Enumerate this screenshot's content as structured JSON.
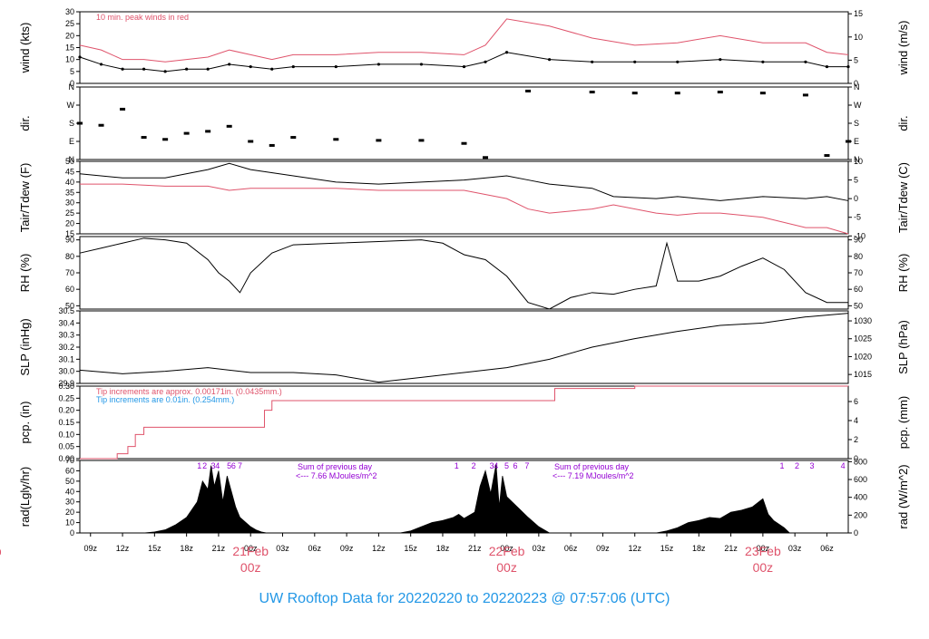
{
  "title": "UW Rooftop Data for 20220220  to  20220223 @ 07:57:06  (UTC)",
  "colors": {
    "red": "#df536b",
    "blue": "#2297e6",
    "purple": "#9400d3",
    "black": "#000000"
  },
  "panels": [
    {
      "id": "wind",
      "ylabel_left": "wind (kts)",
      "ylabel_right": "wind (m/s)",
      "left_ticks": [
        "0",
        "5",
        "10",
        "15",
        "20",
        "25",
        "30"
      ],
      "right_ticks": [
        "0",
        "5",
        "10",
        "15"
      ]
    },
    {
      "id": "dir",
      "ylabel_left": "dir.",
      "ylabel_right": "dir.",
      "left_ticks": [
        "N",
        "E",
        "S",
        "W",
        "N"
      ],
      "right_ticks": [
        "N",
        "E",
        "S",
        "W",
        "N"
      ]
    },
    {
      "id": "temp",
      "ylabel_left": "Tair/Tdew (F)",
      "ylabel_right": "Tair/Tdew (C)",
      "left_ticks": [
        "15",
        "20",
        "25",
        "30",
        "35",
        "40",
        "45",
        "50"
      ],
      "right_ticks": [
        "-10",
        "-5",
        "0",
        "5",
        "10"
      ]
    },
    {
      "id": "rh",
      "ylabel_left": "RH (%)",
      "ylabel_right": "RH (%)",
      "left_ticks": [
        "50",
        "60",
        "70",
        "80",
        "90"
      ],
      "right_ticks": [
        "50",
        "60",
        "70",
        "80",
        "90"
      ]
    },
    {
      "id": "slp",
      "ylabel_left": "SLP (inHg)",
      "ylabel_right": "SLP (hPa)",
      "left_ticks": [
        "29.9",
        "30.0",
        "30.1",
        "30.2",
        "30.3",
        "30.4",
        "30.5"
      ],
      "right_ticks": [
        "1015",
        "1020",
        "1025",
        "1030"
      ]
    },
    {
      "id": "pcp",
      "ylabel_left": "pcp. (in)",
      "ylabel_right": "pcp. (mm)",
      "left_ticks": [
        "0.00",
        "0.05",
        "0.10",
        "0.15",
        "0.20",
        "0.25",
        "0.30"
      ],
      "right_ticks": [
        "0",
        "2",
        "4",
        "6"
      ]
    },
    {
      "id": "rad",
      "ylabel_left": "rad(Lgly/hr)",
      "ylabel_right": "rad (W/m^2)",
      "left_ticks": [
        "0",
        "10",
        "20",
        "30",
        "40",
        "50",
        "60",
        "70"
      ],
      "right_ticks": [
        "0",
        "200",
        "400",
        "600",
        "800"
      ]
    }
  ],
  "annotations": {
    "wind_note": "10 min. peak winds in red",
    "tip_note_1": "Tip increments are approx. 0.00171in. (0.0435mm.)",
    "tip_note_2": "Tip increments are 0.01in. (0.254mm.)",
    "sum1_line1": "Sum of previous day",
    "sum1_line2": "<--- 7.66 MJoules/m^2",
    "sum2_line1": "Sum of previous day",
    "sum2_line2": "<--- 7.19 MJoules/m^2",
    "hour_markers": [
      {
        "label": "1",
        "h": 19.2
      },
      {
        "label": "2",
        "h": 19.7
      },
      {
        "label": "3",
        "h": 20.5
      },
      {
        "label": "4",
        "h": 20.9
      },
      {
        "label": "5",
        "h": 22.0
      },
      {
        "label": "6",
        "h": 22.4
      },
      {
        "label": "7",
        "h": 23.0
      },
      {
        "label": "1",
        "h": 43.3
      },
      {
        "label": "2",
        "h": 44.9
      },
      {
        "label": "3",
        "h": 46.6
      },
      {
        "label": "4",
        "h": 47.0
      },
      {
        "label": "5",
        "h": 48.0
      },
      {
        "label": "6",
        "h": 48.8
      },
      {
        "label": "7",
        "h": 49.9
      },
      {
        "label": "1",
        "h": 73.8
      },
      {
        "label": "2",
        "h": 75.2
      },
      {
        "label": "3",
        "h": 76.6
      },
      {
        "label": "4",
        "h": 79.5
      }
    ]
  },
  "x_ticks": [
    "09z",
    "12z",
    "15z",
    "18z",
    "21z",
    "00z",
    "03z",
    "06z",
    "09z",
    "12z",
    "15z",
    "18z",
    "21z",
    "00z",
    "03z",
    "06z",
    "09z",
    "12z",
    "15z",
    "18z",
    "21z",
    "00z",
    "03z",
    "06z"
  ],
  "day_labels": [
    {
      "date": "eb",
      "hour": "z"
    },
    {
      "date": "21Feb",
      "hour": "00z"
    },
    {
      "date": "22Feb",
      "hour": "00z"
    },
    {
      "date": "23Feb",
      "hour": "00z"
    }
  ],
  "chart_data": {
    "type": "line",
    "x_unit": "hours since 2022-02-20 00z",
    "x_range": [
      8,
      80
    ],
    "wind_kts": {
      "x": [
        8,
        10,
        12,
        14,
        16,
        18,
        20,
        22,
        24,
        26,
        28,
        32,
        36,
        40,
        44,
        46,
        48,
        52,
        56,
        60,
        64,
        68,
        72,
        76,
        78,
        80
      ],
      "sustained": [
        11,
        8,
        6,
        6,
        5,
        6,
        6,
        8,
        7,
        6,
        7,
        7,
        8,
        8,
        7,
        9,
        13,
        10,
        9,
        9,
        9,
        10,
        9,
        9,
        7,
        7
      ],
      "peak": [
        16,
        14,
        10,
        10,
        9,
        10,
        11,
        14,
        12,
        10,
        12,
        12,
        13,
        13,
        12,
        16,
        27,
        24,
        19,
        16,
        17,
        20,
        17,
        17,
        13,
        12
      ],
      "ylim": [
        0,
        30
      ]
    },
    "wind_dir": {
      "x": [
        8,
        10,
        12,
        14,
        16,
        18,
        20,
        22,
        24,
        26,
        28,
        32,
        36,
        40,
        44,
        46,
        50,
        56,
        60,
        64,
        68,
        72,
        76,
        78,
        80
      ],
      "deg": [
        180,
        170,
        250,
        110,
        100,
        130,
        140,
        165,
        90,
        70,
        110,
        100,
        95,
        95,
        80,
        10,
        340,
        335,
        330,
        330,
        335,
        330,
        320,
        20,
        90
      ],
      "ylim": [
        0,
        360
      ]
    },
    "temp_f": {
      "x": [
        8,
        12,
        16,
        20,
        22,
        24,
        28,
        32,
        36,
        40,
        44,
        48,
        50,
        52,
        54,
        56,
        58,
        62,
        64,
        66,
        68,
        72,
        76,
        78,
        80
      ],
      "tair": [
        44,
        42,
        42,
        46,
        49,
        46,
        43,
        40,
        39,
        40,
        41,
        43,
        41,
        39,
        38,
        37,
        33,
        32,
        33,
        32,
        31,
        33,
        32,
        33,
        31
      ],
      "tdew": [
        39,
        39,
        38,
        38,
        36,
        37,
        37,
        37,
        36,
        36,
        36,
        32,
        27,
        25,
        26,
        27,
        29,
        25,
        24,
        25,
        25,
        23,
        18,
        18,
        15
      ],
      "ylim": [
        15,
        50
      ]
    },
    "rh_pct": {
      "x": [
        8,
        10,
        12,
        14,
        16,
        18,
        20,
        21,
        22,
        23,
        24,
        26,
        28,
        32,
        36,
        40,
        42,
        44,
        46,
        48,
        50,
        52,
        54,
        56,
        58,
        60,
        62,
        63,
        64,
        66,
        68,
        70,
        72,
        74,
        76,
        78,
        80
      ],
      "values": [
        82,
        85,
        88,
        91,
        90,
        88,
        78,
        70,
        65,
        58,
        70,
        82,
        87,
        88,
        89,
        90,
        88,
        81,
        78,
        68,
        52,
        48,
        55,
        58,
        57,
        60,
        62,
        88,
        65,
        65,
        68,
        74,
        79,
        72,
        58,
        52,
        52
      ],
      "ylim": [
        48,
        92
      ]
    },
    "slp_inhg": {
      "x": [
        8,
        12,
        16,
        20,
        24,
        28,
        32,
        36,
        40,
        44,
        48,
        52,
        56,
        60,
        64,
        68,
        72,
        76,
        80
      ],
      "values": [
        30.01,
        29.98,
        30.0,
        30.03,
        29.99,
        29.99,
        29.97,
        29.91,
        29.95,
        29.99,
        30.03,
        30.1,
        30.2,
        30.27,
        30.33,
        30.38,
        30.4,
        30.45,
        30.48
      ],
      "ylim": [
        29.9,
        30.5
      ]
    },
    "pcp_in": {
      "x": [
        8,
        10.5,
        11.5,
        12.5,
        13.2,
        14,
        19,
        20,
        24,
        25.3,
        26,
        30,
        46,
        47.5,
        48,
        49,
        52,
        52.5,
        60,
        80
      ],
      "values": [
        0.0,
        0.0,
        0.02,
        0.05,
        0.1,
        0.13,
        0.13,
        0.13,
        0.13,
        0.2,
        0.24,
        0.24,
        0.24,
        0.24,
        0.24,
        0.24,
        0.24,
        0.29,
        0.3,
        0.3
      ],
      "ylim": [
        0,
        0.3
      ]
    },
    "rad_lgly": {
      "x": [
        14,
        15,
        16,
        17,
        18,
        19,
        19.5,
        20,
        20.3,
        20.6,
        21,
        21.4,
        21.8,
        22.2,
        22.6,
        23,
        24,
        24.5,
        25,
        25.5,
        38,
        39,
        40,
        41,
        42,
        43,
        43.5,
        44,
        45,
        45.5,
        46,
        46.5,
        47,
        47.3,
        47.6,
        48,
        49,
        50,
        51,
        52,
        62,
        63,
        64,
        65,
        66,
        67,
        68,
        69,
        70,
        71,
        72,
        72.5,
        73,
        74,
        74.5
      ],
      "values": [
        0,
        1,
        3,
        8,
        15,
        30,
        50,
        42,
        65,
        45,
        60,
        30,
        55,
        40,
        25,
        15,
        6,
        3,
        1,
        0,
        0,
        2,
        6,
        10,
        12,
        15,
        18,
        14,
        20,
        45,
        60,
        38,
        66,
        25,
        55,
        35,
        25,
        15,
        6,
        0,
        0,
        2,
        5,
        10,
        12,
        15,
        14,
        20,
        22,
        25,
        33,
        18,
        12,
        5,
        0
      ],
      "ylim": [
        0,
        70
      ]
    }
  }
}
